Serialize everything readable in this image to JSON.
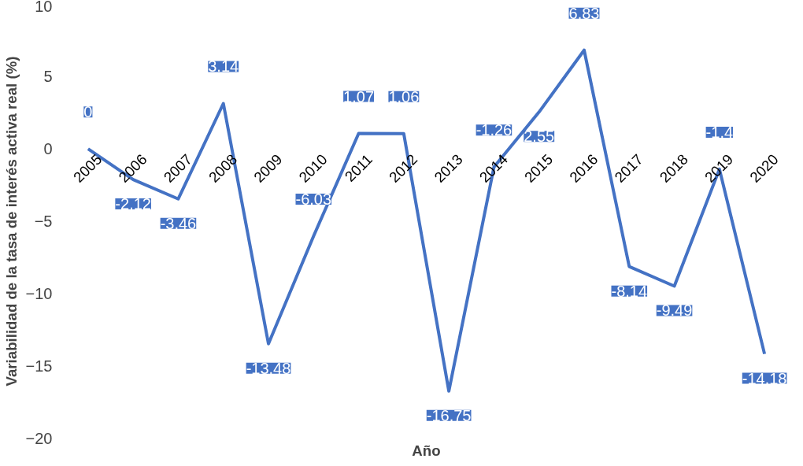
{
  "chart_data": {
    "type": "line",
    "xlabel": "Año",
    "ylabel": "Variabilidad de la tasa de interés activa real (%)",
    "categories": [
      "2005",
      "2006",
      "2007",
      "2008",
      "2009",
      "2010",
      "2011",
      "2012",
      "2013",
      "2014",
      "2015",
      "2016",
      "2017",
      "2018",
      "2019",
      "2020"
    ],
    "series": [
      {
        "color": "#4472c4",
        "values": [
          0,
          -2.12,
          -3.46,
          3.14,
          -13.48,
          -6.03,
          1.07,
          1.06,
          -16.75,
          -1.26,
          2.55,
          6.83,
          -8.14,
          -9.49,
          -1.4,
          -14.18
        ]
      }
    ],
    "ylim": [
      -20,
      10
    ],
    "yticks": [
      -20,
      -15,
      -10,
      -5,
      0,
      5,
      10
    ],
    "grid": false,
    "data_labels": true,
    "marker": "none",
    "line_style": "solid"
  }
}
